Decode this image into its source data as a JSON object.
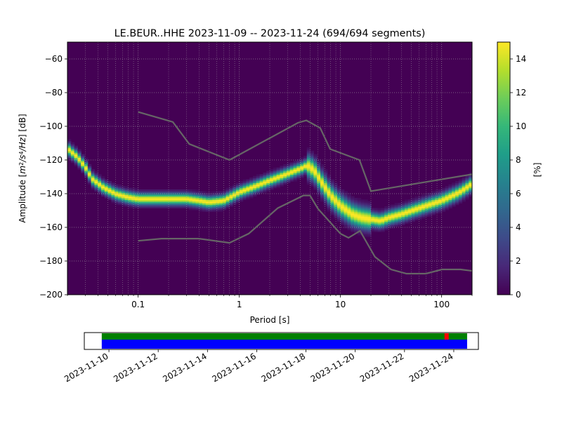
{
  "chart_data": [
    {
      "type": "heatmap",
      "title": "LE.BEUR..HHE   2023-11-09 -- 2023-11-24  (694/694 segments)",
      "xlabel": "Period [s]",
      "ylabel_parts": [
        "Amplitude [",
        "m",
        "2",
        "/",
        "s",
        "4",
        "/",
        "Hz",
        "] [dB]"
      ],
      "xscale": "log",
      "xlim": [
        0.02,
        200
      ],
      "ylim": [
        -200,
        -50
      ],
      "x_ticks": [
        {
          "v": 0.1,
          "label": "0.1"
        },
        {
          "v": 1,
          "label": "1"
        },
        {
          "v": 10,
          "label": "10"
        },
        {
          "v": 100,
          "label": "100"
        }
      ],
      "y_ticks": [
        {
          "v": -60,
          "label": "−60"
        },
        {
          "v": -80,
          "label": "−80"
        },
        {
          "v": -100,
          "label": "−100"
        },
        {
          "v": -120,
          "label": "−120"
        },
        {
          "v": -140,
          "label": "−140"
        },
        {
          "v": -160,
          "label": "−160"
        },
        {
          "v": -180,
          "label": "−180"
        },
        {
          "v": -200,
          "label": "−200"
        }
      ],
      "grid": true,
      "background_color": "#440154",
      "colormap": "viridis",
      "colorbar": {
        "label": "[%]",
        "range": [
          0,
          15
        ],
        "ticks": [
          {
            "v": 0,
            "label": "0"
          },
          {
            "v": 2,
            "label": "2"
          },
          {
            "v": 4,
            "label": "4"
          },
          {
            "v": 6,
            "label": "6"
          },
          {
            "v": 8,
            "label": "8"
          },
          {
            "v": 10,
            "label": "10"
          },
          {
            "v": 12,
            "label": "12"
          },
          {
            "v": 14,
            "label": "14"
          }
        ]
      },
      "psd_mode": [
        [
          0.02,
          -113
        ],
        [
          0.025,
          -118
        ],
        [
          0.03,
          -124
        ],
        [
          0.035,
          -131
        ],
        [
          0.045,
          -136
        ],
        [
          0.06,
          -140
        ],
        [
          0.08,
          -142
        ],
        [
          0.1,
          -143
        ],
        [
          0.15,
          -143
        ],
        [
          0.2,
          -143
        ],
        [
          0.3,
          -143
        ],
        [
          0.4,
          -144
        ],
        [
          0.5,
          -145
        ],
        [
          0.7,
          -144
        ],
        [
          1.0,
          -139
        ],
        [
          1.5,
          -135
        ],
        [
          2.0,
          -132
        ],
        [
          3.0,
          -128
        ],
        [
          4.0,
          -125
        ],
        [
          4.7,
          -123
        ],
        [
          5.5,
          -126
        ],
        [
          6.5,
          -133
        ],
        [
          8.0,
          -141
        ],
        [
          10,
          -147
        ],
        [
          13,
          -152
        ],
        [
          16,
          -154
        ],
        [
          20,
          -155
        ],
        [
          25,
          -156
        ],
        [
          30,
          -154
        ],
        [
          40,
          -152
        ],
        [
          50,
          -150
        ],
        [
          70,
          -147
        ],
        [
          100,
          -144
        ],
        [
          150,
          -139
        ],
        [
          200,
          -134
        ]
      ],
      "noise_model_high": [
        [
          0.1,
          -91.5
        ],
        [
          0.22,
          -97.4
        ],
        [
          0.32,
          -110.5
        ],
        [
          0.8,
          -120
        ],
        [
          3.8,
          -97.9
        ],
        [
          4.6,
          -96.5
        ],
        [
          6.3,
          -101
        ],
        [
          7.9,
          -113.5
        ],
        [
          15.4,
          -120
        ],
        [
          20,
          -138.5
        ],
        [
          354.8,
          -126
        ]
      ],
      "noise_model_low": [
        [
          0.1,
          -168
        ],
        [
          0.17,
          -166.7
        ],
        [
          0.4,
          -166.7
        ],
        [
          0.8,
          -169.2
        ],
        [
          1.24,
          -163.7
        ],
        [
          2.4,
          -148.6
        ],
        [
          4.3,
          -141.1
        ],
        [
          5.0,
          -141.1
        ],
        [
          6.0,
          -149
        ],
        [
          10,
          -163.8
        ],
        [
          12,
          -166.2
        ],
        [
          15.6,
          -162.1
        ],
        [
          21.9,
          -177.5
        ],
        [
          31.6,
          -185
        ],
        [
          45,
          -187.5
        ],
        [
          70,
          -187.5
        ],
        [
          101,
          -185
        ],
        [
          154,
          -185
        ],
        [
          328,
          -187.5
        ]
      ]
    },
    {
      "type": "timeline",
      "x_range": [
        "2023-11-09",
        "2023-11-25"
      ],
      "x_ticks": [
        "2023-11-10",
        "2023-11-12",
        "2023-11-14",
        "2023-11-16",
        "2023-11-18",
        "2023-11-20",
        "2023-11-22",
        "2023-11-24"
      ],
      "data_available": {
        "start": "2023-11-09T17:00",
        "end": "2023-11-24T13:00",
        "color": "#008000"
      },
      "psd_used": {
        "start": "2023-11-09T17:00",
        "end": "2023-11-24T13:00",
        "color": "#0000ff"
      },
      "gaps": [
        {
          "at": "2023-11-23T17:00",
          "color": "#ff0000"
        }
      ],
      "markers": [
        {
          "at": "2023-11-09T10:00",
          "color": "#ffffff"
        }
      ]
    }
  ]
}
